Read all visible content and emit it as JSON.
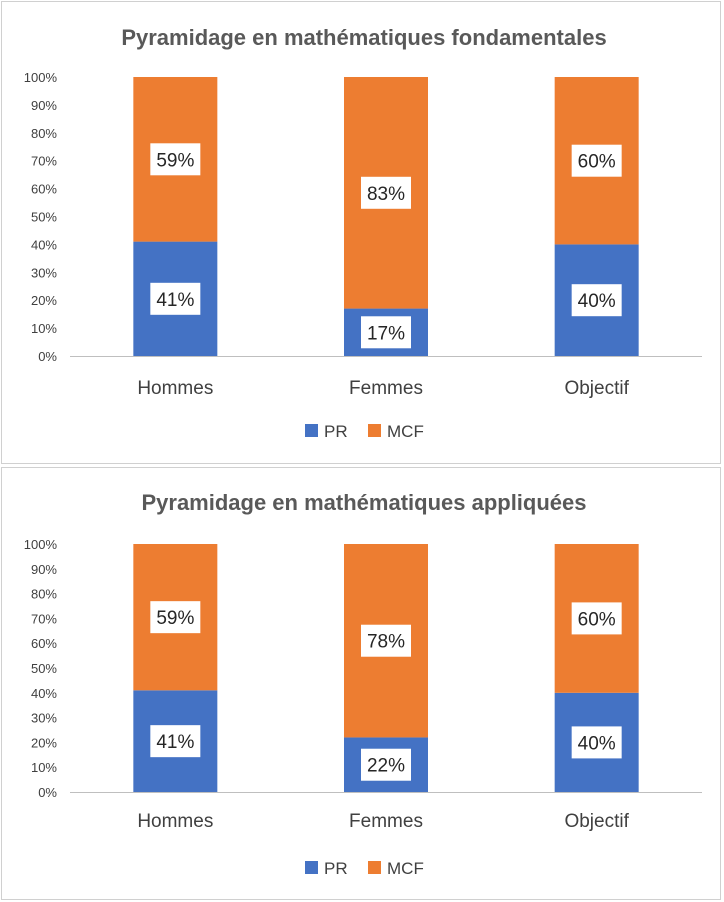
{
  "colors": {
    "PR": "#4472C4",
    "MCF": "#ED7D31",
    "axis": "#bfbfbf",
    "label_box": "#ffffff"
  },
  "chart_data": [
    {
      "type": "bar",
      "stacked": true,
      "title": "Pyramidage en mathématiques fondamentales",
      "categories": [
        "Hommes",
        "Femmes",
        "Objectif"
      ],
      "series": [
        {
          "name": "PR",
          "values": [
            41,
            17,
            40
          ],
          "labels": [
            "41%",
            "17%",
            "40%"
          ]
        },
        {
          "name": "MCF",
          "values": [
            59,
            83,
            60
          ],
          "labels": [
            "59%",
            "83%",
            "60%"
          ]
        }
      ],
      "yticks": [
        "0%",
        "10%",
        "20%",
        "30%",
        "40%",
        "50%",
        "60%",
        "70%",
        "80%",
        "90%",
        "100%"
      ],
      "ylim": [
        0,
        100
      ],
      "grid": false,
      "legend": "bottom"
    },
    {
      "type": "bar",
      "stacked": true,
      "title": "Pyramidage en mathématiques appliquées",
      "categories": [
        "Hommes",
        "Femmes",
        "Objectif"
      ],
      "series": [
        {
          "name": "PR",
          "values": [
            41,
            22,
            40
          ],
          "labels": [
            "41%",
            "22%",
            "40%"
          ]
        },
        {
          "name": "MCF",
          "values": [
            59,
            78,
            60
          ],
          "labels": [
            "59%",
            "78%",
            "60%"
          ]
        }
      ],
      "yticks": [
        "0%",
        "10%",
        "20%",
        "30%",
        "40%",
        "50%",
        "60%",
        "70%",
        "80%",
        "90%",
        "100%"
      ],
      "ylim": [
        0,
        100
      ],
      "grid": false,
      "legend": "bottom"
    }
  ]
}
